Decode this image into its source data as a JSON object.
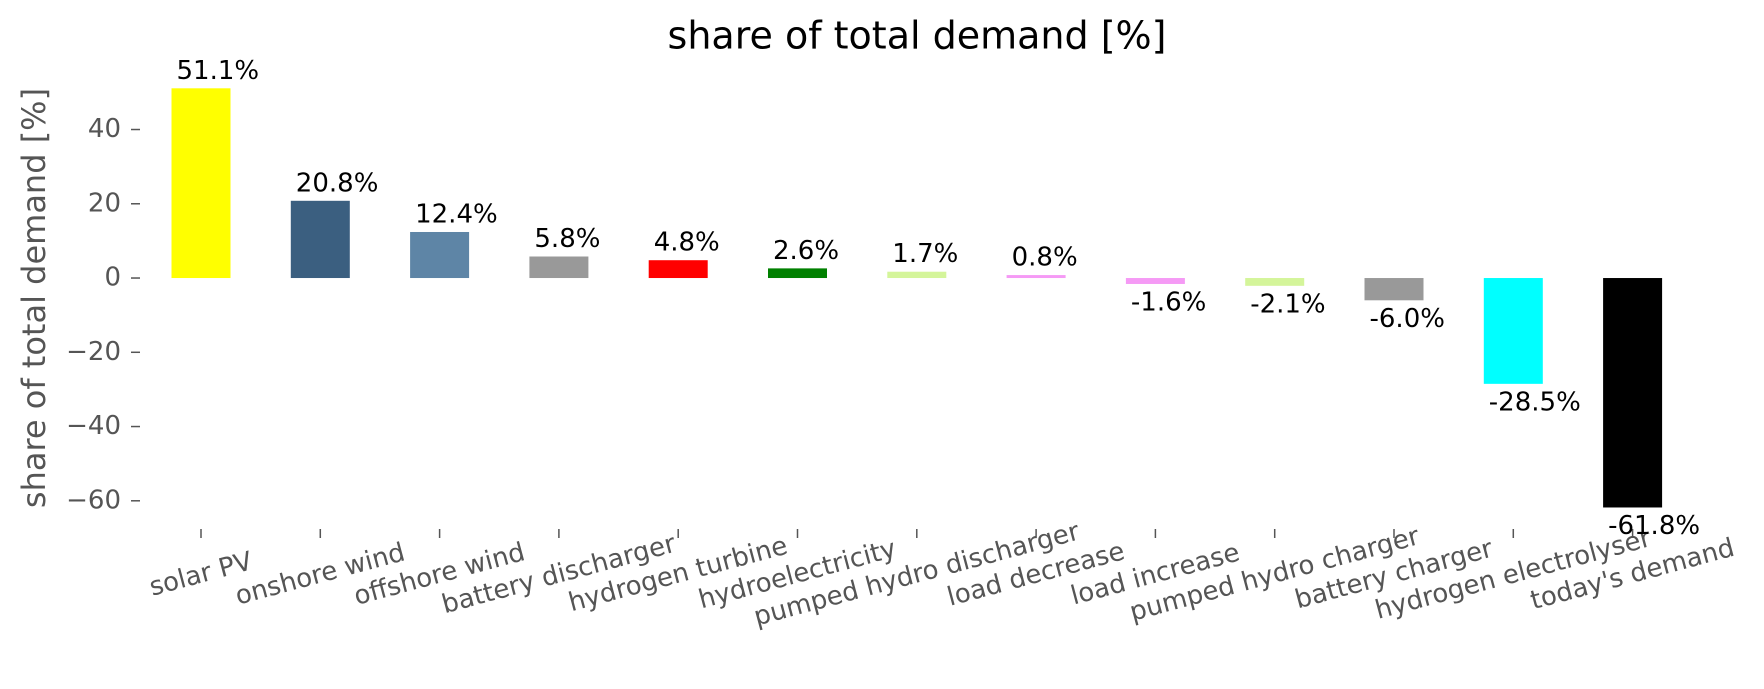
{
  "chart_data": {
    "type": "bar",
    "title": "share of total demand [%]",
    "ylabel": "share of total demand [%]",
    "categories": [
      "solar PV",
      "onshore wind",
      "offshore wind",
      "battery discharger",
      "hydrogen turbine",
      "hydroelectricity",
      "pumped hydro discharger",
      "load decrease",
      "load increase",
      "pumped hydro charger",
      "battery charger",
      "hydrogen electrolyser",
      "today's demand"
    ],
    "values": [
      51.1,
      20.8,
      12.4,
      5.8,
      4.8,
      2.6,
      1.7,
      0.8,
      -1.6,
      -2.1,
      -6.0,
      -28.5,
      -61.8
    ],
    "value_labels": [
      "51.1%",
      "20.8%",
      "12.4%",
      "5.8%",
      "4.8%",
      "2.6%",
      "1.7%",
      "0.8%",
      "-1.6%",
      "-2.1%",
      "-6.0%",
      "-28.5%",
      "-61.8%"
    ],
    "colors": [
      "#ffff00",
      "#3b5f80",
      "#5e85a6",
      "#999999",
      "#ff0000",
      "#008000",
      "#d4f59a",
      "#f59af5",
      "#f59af5",
      "#d4f59a",
      "#999999",
      "#00ffff",
      "#000000"
    ],
    "ylim": [
      -68,
      57
    ],
    "yticks": [
      {
        "value": -60,
        "label": "−60"
      },
      {
        "value": -40,
        "label": "−40"
      },
      {
        "value": -20,
        "label": "−20"
      },
      0,
      20,
      40
    ],
    "grid": false
  }
}
